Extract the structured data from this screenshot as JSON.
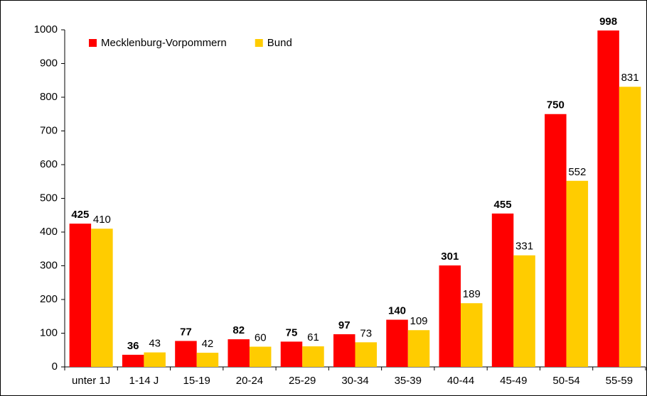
{
  "chart_data": {
    "type": "bar",
    "categories": [
      "unter 1J",
      "1-14 J",
      "15-19",
      "20-24",
      "25-29",
      "30-34",
      "35-39",
      "40-44",
      "45-49",
      "50-54",
      "55-59"
    ],
    "series": [
      {
        "name": "Mecklenburg-Vorpommern",
        "color": "#ff0000",
        "values": [
          425,
          36,
          77,
          82,
          75,
          97,
          140,
          301,
          455,
          750,
          998
        ]
      },
      {
        "name": "Bund",
        "color": "#ffcc00",
        "values": [
          410,
          43,
          42,
          60,
          61,
          73,
          109,
          189,
          331,
          552,
          831
        ]
      }
    ],
    "ylim": [
      0,
      1000
    ],
    "yticks": [
      0,
      100,
      200,
      300,
      400,
      500,
      600,
      700,
      800,
      900,
      1000
    ],
    "legend": "top-left"
  }
}
